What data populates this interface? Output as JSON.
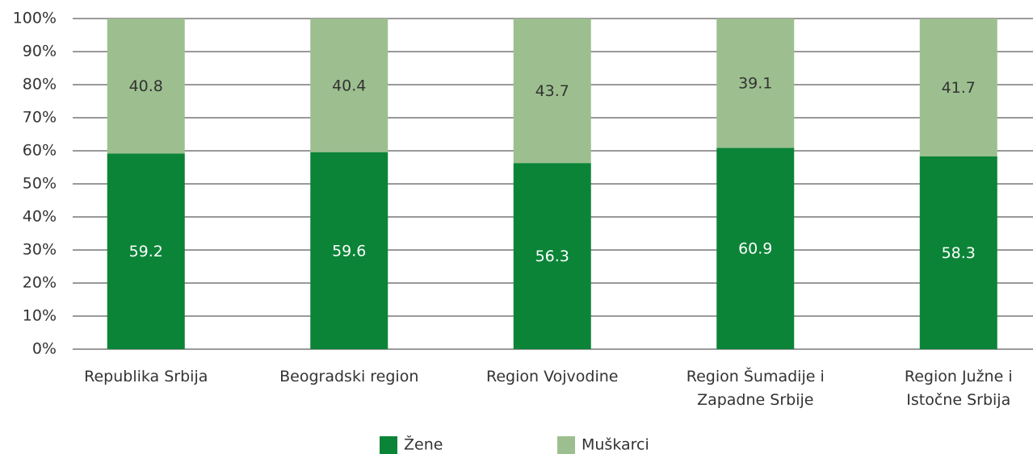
{
  "chart_data": {
    "type": "stacked_bar",
    "categories": [
      "Republika Srbija",
      "Beogradski region",
      "Region Vojvodine",
      "Region Šumadije i Zapadne Srbije",
      "Region Južne i Istočne Srbija"
    ],
    "series": [
      {
        "name": "Žene",
        "color": "#0b8437",
        "values": [
          59.2,
          59.6,
          56.3,
          60.9,
          58.3
        ]
      },
      {
        "name": "Muškarci",
        "color": "#9dbf8f",
        "values": [
          40.8,
          40.4,
          43.7,
          39.1,
          41.7
        ]
      }
    ],
    "ylim": [
      0,
      100
    ],
    "yticks": [
      {
        "value": 0,
        "label": "0%"
      },
      {
        "value": 10,
        "label": "10%"
      },
      {
        "value": 20,
        "label": "20%"
      },
      {
        "value": 30,
        "label": "30%"
      },
      {
        "value": 40,
        "label": "40%"
      },
      {
        "value": 50,
        "label": "50%"
      },
      {
        "value": 60,
        "label": "60%"
      },
      {
        "value": 70,
        "label": "70%"
      },
      {
        "value": 80,
        "label": "80%"
      },
      {
        "value": 90,
        "label": "90%"
      },
      {
        "value": 100,
        "label": "100%"
      }
    ],
    "grid": true,
    "legend": "bottom"
  }
}
